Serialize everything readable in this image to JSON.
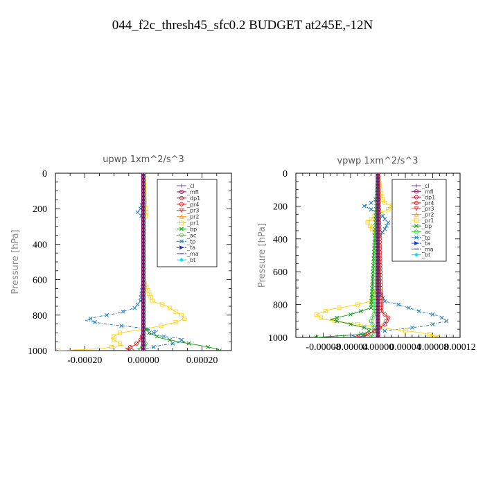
{
  "figure": {
    "title": "044_f2c_thresh45_sfc0.2  BUDGET at245E,-12N"
  },
  "colors": {
    "_cl": "#7f3f9f",
    "_mfl": "#8b0a50",
    "_dp1": "#b0183c",
    "_pr4": "#d81a1a",
    "_pr3": "#ee3030",
    "_pr2": "#ff9a1a",
    "_pr1": "#ffd21a",
    "_bp": "#1a9a1a",
    "_ac": "#3ad23a",
    "_tp": "#1a7abf",
    "_ta": "#1a3acf",
    "_ma": "#2a2aa0",
    "_bt": "#00e5ee"
  },
  "chart_data": [
    {
      "type": "line",
      "title": "upwp   1xm^2/s^3",
      "xlabel": "",
      "ylabel": "Pressure [hPa]",
      "xlim": [
        -0.0003,
        0.0003
      ],
      "ylim": [
        1000,
        0
      ],
      "xticks": [
        -0.0002,
        0,
        0.0002
      ],
      "xtick_labels": [
        "-0.00020",
        "0.00000",
        "0.00020"
      ],
      "yticks": [
        0,
        200,
        400,
        600,
        800,
        1000
      ],
      "ytick_labels": [
        "0",
        "200",
        "400",
        "600",
        "800",
        "1000"
      ],
      "legend_position": "top-right",
      "legend": [
        "_cl",
        "_mfl",
        "_dp1",
        "_pr4",
        "_pr3",
        "_pr2",
        "_pr1",
        "_bp",
        "_ac",
        "_tp",
        "_ta",
        "_ma",
        "_bt"
      ],
      "series": [
        {
          "name": "_tp",
          "y": [
            0,
            150,
            200,
            220,
            250,
            600,
            720,
            760,
            790,
            810,
            830,
            850,
            870,
            890,
            910,
            930,
            950,
            970,
            990,
            1000
          ],
          "x": [
            0,
            0,
            -1e-05,
            -2e-05,
            0,
            0,
            -1e-05,
            -3e-05,
            -9e-05,
            -0.00016,
            -0.0002,
            -0.00013,
            -2e-05,
            5e-05,
            2e-05,
            0.00012,
            0.00014,
            6e-05,
            1e-05,
            0
          ]
        },
        {
          "name": "_pr1",
          "y": [
            0,
            180,
            210,
            230,
            260,
            600,
            720,
            750,
            780,
            800,
            820,
            840,
            860,
            880,
            900,
            930,
            950,
            970,
            990,
            1000
          ],
          "x": [
            0,
            5e-06,
            1e-05,
            1e-05,
            0,
            0,
            3e-05,
            8e-05,
            0.00011,
            0.00013,
            0.00014,
            0.00011,
            6e-05,
            0.0,
            -8e-05,
            -0.00011,
            -9e-05,
            -7e-05,
            -0.00015,
            -0.00029
          ]
        },
        {
          "name": "_bp",
          "y": [
            0,
            860,
            900,
            930,
            950,
            970,
            990,
            1000
          ],
          "x": [
            0,
            0,
            2e-05,
            6e-05,
            0.00012,
            0.00019,
            0.00025,
            0.00026
          ]
        },
        {
          "name": "_pr4",
          "y": [
            0,
            900,
            940,
            970,
            990,
            1000
          ],
          "x": [
            0,
            0,
            -1e-05,
            -3e-05,
            -6e-05,
            -4e-05
          ]
        },
        {
          "name": "_ac",
          "y": [
            0,
            940,
            970,
            990,
            1000
          ],
          "x": [
            0,
            0,
            1e-05,
            -2e-05,
            -1e-05
          ]
        },
        {
          "name": "_cl",
          "y": [
            0,
            1000
          ],
          "x": [
            0,
            0
          ]
        },
        {
          "name": "_mfl",
          "y": [
            0,
            1000
          ],
          "x": [
            0,
            0
          ]
        },
        {
          "name": "_dp1",
          "y": [
            0,
            1000
          ],
          "x": [
            0,
            0
          ]
        },
        {
          "name": "_pr3",
          "y": [
            0,
            1000
          ],
          "x": [
            0,
            0
          ]
        },
        {
          "name": "_pr2",
          "y": [
            0,
            1000
          ],
          "x": [
            0,
            0
          ]
        },
        {
          "name": "_ta",
          "y": [
            0,
            1000
          ],
          "x": [
            0,
            0
          ]
        },
        {
          "name": "_ma",
          "y": [
            0,
            1000
          ],
          "x": [
            0,
            0
          ]
        },
        {
          "name": "_bt",
          "y": [
            0,
            1000
          ],
          "x": [
            0,
            0
          ]
        }
      ]
    },
    {
      "type": "line",
      "title": "vpwp   1xm^2/s^3",
      "xlabel": "",
      "ylabel": "Pressure [hPa]",
      "xlim": [
        -0.00012,
        0.00012
      ],
      "ylim": [
        1000,
        0
      ],
      "xticks": [
        -8e-05,
        -4e-05,
        0,
        4e-05,
        8e-05,
        0.00012
      ],
      "xtick_labels": [
        "-0.00008",
        "-0.00004",
        "0.00000",
        "0.00004",
        "0.00008",
        "0.00012"
      ],
      "yticks": [
        0,
        200,
        400,
        600,
        800,
        1000
      ],
      "ytick_labels": [
        "0",
        "200",
        "400",
        "600",
        "800",
        "1000"
      ],
      "legend_position": "top-right",
      "legend": [
        "_cl",
        "_mfl",
        "_dp1",
        "_pr4",
        "_pr3",
        "_pr2",
        "_pr1",
        "_bp",
        "_ac",
        "_tp",
        "_ta",
        "_ma",
        "_bt"
      ],
      "series": [
        {
          "name": "_pr1",
          "y": [
            0,
            150,
            180,
            200,
            220,
            240,
            260,
            280,
            300,
            330,
            360,
            380,
            400,
            700,
            780,
            800,
            830,
            860,
            890,
            920,
            950,
            970,
            990,
            1000
          ],
          "x": [
            0,
            5e-06,
            1e-05,
            2e-05,
            1.5e-05,
            5e-06,
            -5e-06,
            -1e-05,
            -1.5e-05,
            -1e-05,
            -5e-06,
            0,
            0,
            0,
            -1e-05,
            -3e-05,
            -7e-05,
            -9e-05,
            -8e-05,
            -3e-05,
            2e-05,
            6e-05,
            9e-05,
            8e-05
          ]
        },
        {
          "name": "_tp",
          "y": [
            0,
            150,
            180,
            200,
            220,
            250,
            280,
            300,
            340,
            370,
            400,
            700,
            780,
            800,
            840,
            870,
            900,
            930,
            950,
            970,
            990,
            1000
          ],
          "x": [
            0,
            0,
            -1e-05,
            -2e-05,
            -1e-05,
            5e-06,
            1e-05,
            1.5e-05,
            1e-05,
            5e-06,
            0,
            0,
            1e-05,
            3e-05,
            6e-05,
            9e-05,
            0.0001,
            7e-05,
            3e-05,
            -1e-05,
            -4e-05,
            -2e-05
          ]
        },
        {
          "name": "_bp",
          "y": [
            0,
            820,
            860,
            890,
            920,
            950,
            980,
            1000
          ],
          "x": [
            0,
            -1e-05,
            -4e-05,
            -7e-05,
            -4e-05,
            -1e-05,
            -2e-05,
            -9e-05
          ]
        },
        {
          "name": "_pr4",
          "y": [
            0,
            840,
            880,
            920,
            960,
            990,
            1000
          ],
          "x": [
            0,
            5e-06,
            1.5e-05,
            1e-05,
            -5e-06,
            -2e-05,
            -3e-05
          ]
        },
        {
          "name": "_ac",
          "y": [
            0,
            850,
            900,
            950,
            1000
          ],
          "x": [
            0,
            -5e-06,
            -1e-05,
            -5e-06,
            -1e-05
          ]
        },
        {
          "name": "_cl",
          "y": [
            0,
            1000
          ],
          "x": [
            0,
            0
          ]
        },
        {
          "name": "_mfl",
          "y": [
            0,
            1000
          ],
          "x": [
            0,
            0
          ]
        },
        {
          "name": "_dp1",
          "y": [
            0,
            1000
          ],
          "x": [
            0,
            0
          ]
        },
        {
          "name": "_pr3",
          "y": [
            0,
            1000
          ],
          "x": [
            0,
            0
          ]
        },
        {
          "name": "_pr2",
          "y": [
            0,
            1000
          ],
          "x": [
            0,
            0
          ]
        },
        {
          "name": "_ta",
          "y": [
            0,
            1000
          ],
          "x": [
            0,
            0
          ]
        },
        {
          "name": "_ma",
          "y": [
            0,
            1000
          ],
          "x": [
            0,
            0
          ]
        },
        {
          "name": "_bt",
          "y": [
            0,
            1000
          ],
          "x": [
            0,
            0
          ]
        }
      ]
    }
  ]
}
